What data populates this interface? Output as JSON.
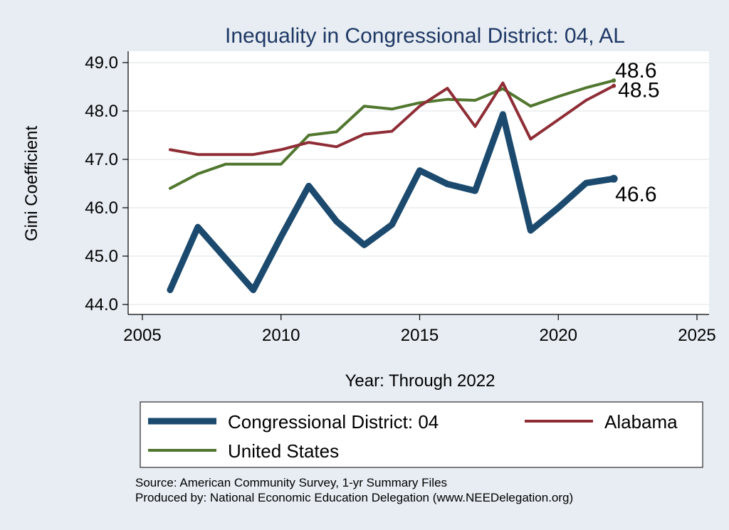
{
  "chart_data": {
    "type": "line",
    "title": "Inequality in Congressional District:  04, AL",
    "xlabel": "Year: Through 2022",
    "ylabel": "Gini Coefficient",
    "xlim": [
      2005,
      2025
    ],
    "ylim": [
      44.0,
      49.0
    ],
    "x_ticks": [
      2005,
      2010,
      2015,
      2020,
      2025
    ],
    "x_tick_labels": [
      "2005",
      "2010",
      "2015",
      "2020",
      "2025"
    ],
    "y_ticks": [
      44.0,
      45.0,
      46.0,
      47.0,
      48.0,
      49.0
    ],
    "y_tick_labels": [
      "44.0",
      "45.0",
      "46.0",
      "47.0",
      "48.0",
      "49.0"
    ],
    "grid": true,
    "legend_position": "bottom",
    "x": [
      2006,
      2007,
      2008,
      2009,
      2010,
      2011,
      2012,
      2013,
      2014,
      2015,
      2016,
      2017,
      2018,
      2019,
      2020,
      2021,
      2022
    ],
    "series": [
      {
        "name": "Congressional District:  04",
        "color": "#1b4a6e",
        "values": [
          44.3,
          45.6,
          44.95,
          44.3,
          45.4,
          46.45,
          45.72,
          45.23,
          45.65,
          46.77,
          46.49,
          46.35,
          47.93,
          45.53,
          46.0,
          46.51,
          46.6
        ],
        "end_label": "46.6"
      },
      {
        "name": "Alabama",
        "color": "#8f2d36",
        "values": [
          47.2,
          47.1,
          47.1,
          47.1,
          47.2,
          47.35,
          47.26,
          47.52,
          47.58,
          48.1,
          48.47,
          47.68,
          48.58,
          47.42,
          47.82,
          48.22,
          48.52
        ],
        "end_label": "48.5"
      },
      {
        "name": "United States",
        "color": "#51772f",
        "values": [
          46.4,
          46.7,
          46.9,
          46.9,
          46.9,
          47.5,
          47.57,
          48.1,
          48.04,
          48.17,
          48.24,
          48.22,
          48.46,
          48.1,
          48.3,
          48.48,
          48.63
        ],
        "end_label": "48.6"
      }
    ],
    "notes": [
      "Source: American Community Survey, 1-yr Summary Files",
      "Produced by: National Economic Education Delegation (www.NEEDelegation.org)"
    ]
  }
}
